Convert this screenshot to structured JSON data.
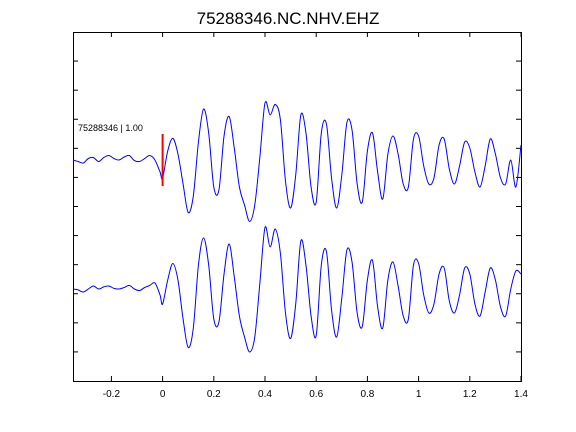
{
  "chart_data": {
    "type": "line",
    "title": "75288346.NC.NHV.EHZ",
    "xlabel": "",
    "ylabel": "",
    "xlim": [
      -0.35,
      1.4
    ],
    "x_ticks": [
      -0.2,
      0,
      0.2,
      0.4,
      0.6,
      0.8,
      1,
      1.2,
      1.4
    ],
    "x_tick_labels": [
      "-0.2",
      "0",
      "0.2",
      "0.4",
      "0.6",
      "0.8",
      "1",
      "1.2",
      "1.4"
    ],
    "y_tick_count": 11,
    "grid": false,
    "trace_label": "75288346 | 1.00",
    "pick_time": 0,
    "colors": {
      "trace": "#0000ff",
      "pick": "#ff0000",
      "axes": "#000000"
    },
    "series": [
      {
        "x": [
          -0.35,
          -0.33,
          -0.31,
          -0.29,
          -0.27,
          -0.25,
          -0.23,
          -0.21,
          -0.19,
          -0.17,
          -0.15,
          -0.13,
          -0.11,
          -0.09,
          -0.07,
          -0.05,
          -0.03,
          -0.01,
          0.0,
          0.02,
          0.04,
          0.06,
          0.08,
          0.1,
          0.12,
          0.14,
          0.16,
          0.18,
          0.2,
          0.22,
          0.24,
          0.26,
          0.28,
          0.3,
          0.32,
          0.34,
          0.36,
          0.38,
          0.4,
          0.42,
          0.44,
          0.46,
          0.48,
          0.5,
          0.52,
          0.54,
          0.56,
          0.58,
          0.6,
          0.62,
          0.64,
          0.66,
          0.68,
          0.7,
          0.72,
          0.74,
          0.76,
          0.78,
          0.8,
          0.82,
          0.84,
          0.86,
          0.88,
          0.9,
          0.92,
          0.94,
          0.96,
          0.98,
          1.0,
          1.02,
          1.04,
          1.06,
          1.08,
          1.1,
          1.12,
          1.14,
          1.16,
          1.18,
          1.2,
          1.22,
          1.24,
          1.26,
          1.28,
          1.3,
          1.32,
          1.34,
          1.36,
          1.38,
          1.4
        ],
        "values": [
          0.0,
          -0.05,
          -0.1,
          0.05,
          0.08,
          -0.05,
          0.08,
          0.15,
          0.05,
          0.0,
          0.1,
          0.15,
          -0.02,
          -0.05,
          0.05,
          0.15,
          0.0,
          -0.4,
          -0.6,
          0.3,
          0.72,
          0.2,
          -0.8,
          -1.75,
          -1.2,
          0.6,
          1.7,
          0.9,
          -0.9,
          -1.0,
          0.8,
          1.45,
          0.4,
          -0.9,
          -1.5,
          -2.05,
          -1.5,
          0.1,
          1.9,
          1.5,
          1.85,
          1.35,
          -0.7,
          -1.6,
          -0.5,
          1.5,
          0.9,
          -0.9,
          -1.4,
          0.9,
          1.2,
          -0.6,
          -1.6,
          -0.5,
          1.25,
          1.0,
          -0.8,
          -1.4,
          0.3,
          0.9,
          -0.4,
          -1.3,
          0.2,
          0.8,
          0.2,
          -0.8,
          -0.9,
          0.7,
          0.8,
          -0.2,
          -0.8,
          -0.6,
          0.5,
          0.7,
          -0.3,
          -0.8,
          -0.2,
          0.6,
          0.4,
          -0.4,
          -0.9,
          -0.2,
          0.7,
          0.2,
          -0.6,
          -0.8,
          0.0,
          -0.9,
          0.5
        ]
      },
      {
        "x": [
          -0.35,
          -0.33,
          -0.31,
          -0.29,
          -0.27,
          -0.25,
          -0.23,
          -0.21,
          -0.19,
          -0.17,
          -0.15,
          -0.13,
          -0.11,
          -0.09,
          -0.07,
          -0.05,
          -0.03,
          -0.01,
          0.0,
          0.02,
          0.04,
          0.06,
          0.08,
          0.1,
          0.12,
          0.14,
          0.16,
          0.18,
          0.2,
          0.22,
          0.24,
          0.26,
          0.28,
          0.3,
          0.32,
          0.34,
          0.36,
          0.38,
          0.4,
          0.42,
          0.44,
          0.46,
          0.48,
          0.5,
          0.52,
          0.54,
          0.56,
          0.58,
          0.6,
          0.62,
          0.64,
          0.66,
          0.68,
          0.7,
          0.72,
          0.74,
          0.76,
          0.78,
          0.8,
          0.82,
          0.84,
          0.86,
          0.88,
          0.9,
          0.92,
          0.94,
          0.96,
          0.98,
          1.0,
          1.02,
          1.04,
          1.06,
          1.08,
          1.1,
          1.12,
          1.14,
          1.16,
          1.18,
          1.2,
          1.22,
          1.24,
          1.26,
          1.28,
          1.3,
          1.32,
          1.34,
          1.36,
          1.38,
          1.4
        ],
        "values": [
          0.0,
          -0.03,
          -0.1,
          0.0,
          0.1,
          0.0,
          0.07,
          0.1,
          0.02,
          0.0,
          0.05,
          0.12,
          0.0,
          -0.05,
          0.05,
          0.12,
          0.2,
          -0.2,
          -0.5,
          0.3,
          0.85,
          0.3,
          -1.0,
          -1.95,
          -1.3,
          0.8,
          1.7,
          0.8,
          -1.0,
          -1.1,
          0.5,
          1.5,
          0.4,
          -0.9,
          -1.6,
          -2.1,
          -1.6,
          0.2,
          2.05,
          1.4,
          2.0,
          1.2,
          -0.8,
          -1.65,
          -0.5,
          1.6,
          0.8,
          -0.9,
          -1.55,
          0.8,
          1.25,
          -0.7,
          -1.6,
          -0.3,
          1.3,
          0.9,
          -0.8,
          -1.25,
          0.3,
          0.95,
          -0.6,
          -1.3,
          0.3,
          0.9,
          0.1,
          -0.9,
          -1.0,
          0.8,
          0.85,
          -0.2,
          -0.8,
          -0.5,
          0.5,
          0.7,
          -0.4,
          -0.8,
          -0.2,
          0.7,
          0.5,
          -0.5,
          -0.9,
          -0.1,
          0.7,
          0.3,
          -0.6,
          -0.9,
          0.0,
          0.6,
          0.5
        ]
      }
    ]
  }
}
